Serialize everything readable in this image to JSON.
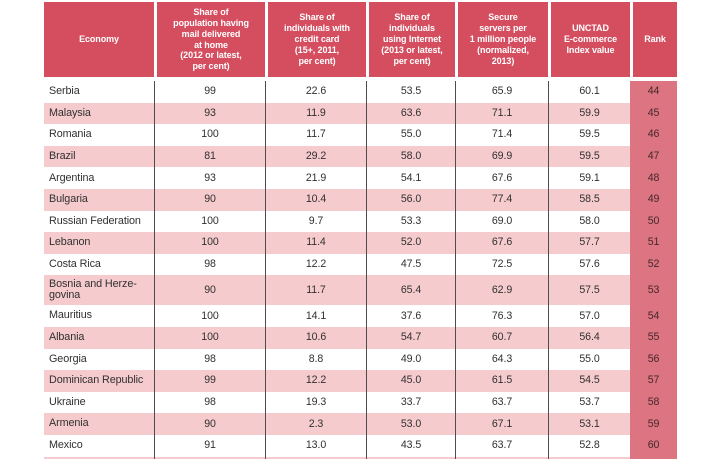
{
  "colors": {
    "header_red": "#d54e60",
    "header_text": "#ffffff",
    "stripe_pink": "#f6cbcd",
    "rank_pink": "#dc7581",
    "rank_text": "#46262b",
    "body_text": "#303030",
    "divider": "#4d4d4d"
  },
  "table": {
    "headers": [
      {
        "id": "economy",
        "label": "Economy"
      },
      {
        "id": "mail",
        "label": "Share of\npopulation having\nmail delivered\nat home\n(2012 or latest,\nper cent)"
      },
      {
        "id": "credit_card",
        "label": "Share of\nindividuals with\ncredit card\n(15+, 2011,\nper cent)"
      },
      {
        "id": "internet",
        "label": "Share of\nindividuals\nusing Internet\n(2013 or latest,\nper cent)"
      },
      {
        "id": "secure_servers",
        "label": "Secure\nservers per\n1 million people\n(normalized,\n2013)"
      },
      {
        "id": "index_value",
        "label": "UNCTAD\nE-commerce\nIndex value"
      },
      {
        "id": "rank",
        "label": "Rank"
      }
    ],
    "rows": [
      {
        "economy": "Serbia",
        "mail": "99",
        "credit_card": "22.6",
        "internet": "53.5",
        "secure_servers": "65.9",
        "index_value": "60.1",
        "rank": "44"
      },
      {
        "economy": "Malaysia",
        "mail": "93",
        "credit_card": "11.9",
        "internet": "63.6",
        "secure_servers": "71.1",
        "index_value": "59.9",
        "rank": "45"
      },
      {
        "economy": "Romania",
        "mail": "100",
        "credit_card": "11.7",
        "internet": "55.0",
        "secure_servers": "71.4",
        "index_value": "59.5",
        "rank": "46"
      },
      {
        "economy": "Brazil",
        "mail": "81",
        "credit_card": "29.2",
        "internet": "58.0",
        "secure_servers": "69.9",
        "index_value": "59.5",
        "rank": "47"
      },
      {
        "economy": "Argentina",
        "mail": "93",
        "credit_card": "21.9",
        "internet": "54.1",
        "secure_servers": "67.6",
        "index_value": "59.1",
        "rank": "48"
      },
      {
        "economy": "Bulgaria",
        "mail": "90",
        "credit_card": "10.4",
        "internet": "56.0",
        "secure_servers": "77.4",
        "index_value": "58.5",
        "rank": "49"
      },
      {
        "economy": "Russian Federation",
        "mail": "100",
        "credit_card": "9.7",
        "internet": "53.3",
        "secure_servers": "69.0",
        "index_value": "58.0",
        "rank": "50"
      },
      {
        "economy": "Lebanon",
        "mail": "100",
        "credit_card": "11.4",
        "internet": "52.0",
        "secure_servers": "67.6",
        "index_value": "57.7",
        "rank": "51"
      },
      {
        "economy": "Costa Rica",
        "mail": "98",
        "credit_card": "12.2",
        "internet": "47.5",
        "secure_servers": "72.5",
        "index_value": "57.6",
        "rank": "52"
      },
      {
        "economy": "Bosnia and Herze-govina",
        "mail": "90",
        "credit_card": "11.7",
        "internet": "65.4",
        "secure_servers": "62.9",
        "index_value": "57.5",
        "rank": "53"
      },
      {
        "economy": "Mauritius",
        "mail": "100",
        "credit_card": "14.1",
        "internet": "37.6",
        "secure_servers": "76.3",
        "index_value": "57.0",
        "rank": "54"
      },
      {
        "economy": "Albania",
        "mail": "100",
        "credit_card": "10.6",
        "internet": "54.7",
        "secure_servers": "60.7",
        "index_value": "56.4",
        "rank": "55"
      },
      {
        "economy": "Georgia",
        "mail": "98",
        "credit_card": "8.8",
        "internet": "49.0",
        "secure_servers": "64.3",
        "index_value": "55.0",
        "rank": "56"
      },
      {
        "economy": "Dominican Republic",
        "mail": "99",
        "credit_card": "12.2",
        "internet": "45.0",
        "secure_servers": "61.5",
        "index_value": "54.5",
        "rank": "57"
      },
      {
        "economy": "Ukraine",
        "mail": "98",
        "credit_card": "19.3",
        "internet": "33.7",
        "secure_servers": "63.7",
        "index_value": "53.7",
        "rank": "58"
      },
      {
        "economy": "Armenia",
        "mail": "90",
        "credit_card": "2.3",
        "internet": "53.0",
        "secure_servers": "67.1",
        "index_value": "53.1",
        "rank": "59"
      },
      {
        "economy": "Mexico",
        "mail": "91",
        "credit_card": "13.0",
        "internet": "43.5",
        "secure_servers": "63.7",
        "index_value": "52.8",
        "rank": "60"
      }
    ]
  }
}
